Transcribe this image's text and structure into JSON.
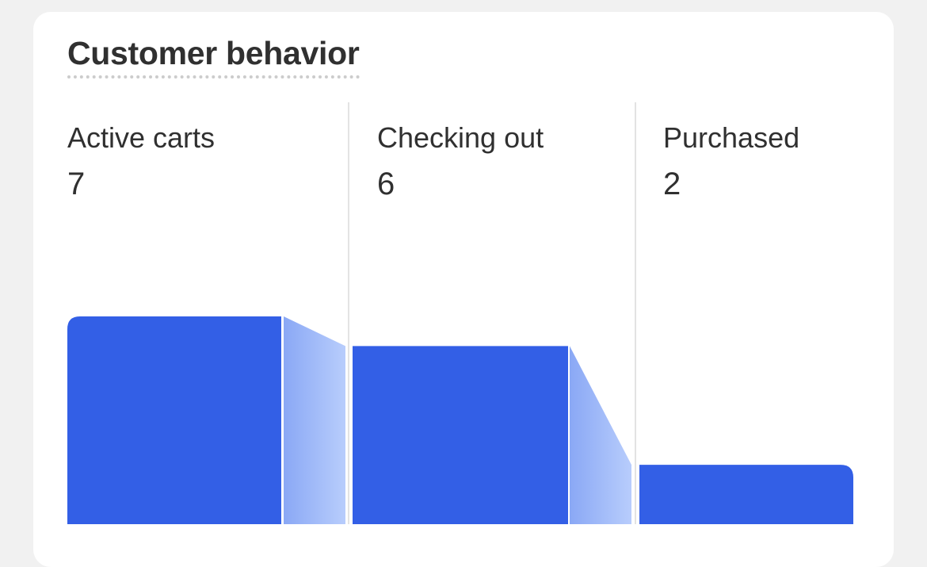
{
  "card": {
    "title": "Customer behavior"
  },
  "chart_data": {
    "type": "bar",
    "title": "Customer behavior",
    "categories": [
      "Active carts",
      "Checking out",
      "Purchased"
    ],
    "values": [
      7,
      6,
      2
    ],
    "ylim": [
      0,
      7
    ],
    "grid": false,
    "legend": "none",
    "bar_color": "#335fe6",
    "connector_color_from": "#8aa8f5",
    "connector_color_to": "#b8cdfc"
  },
  "stages": [
    {
      "label": "Active carts",
      "value": "7"
    },
    {
      "label": "Checking out",
      "value": "6"
    },
    {
      "label": "Purchased",
      "value": "2"
    }
  ],
  "colors": {
    "background": "#f1f1f1",
    "card": "#ffffff",
    "divider": "#e3e3e3",
    "text": "#303030"
  }
}
